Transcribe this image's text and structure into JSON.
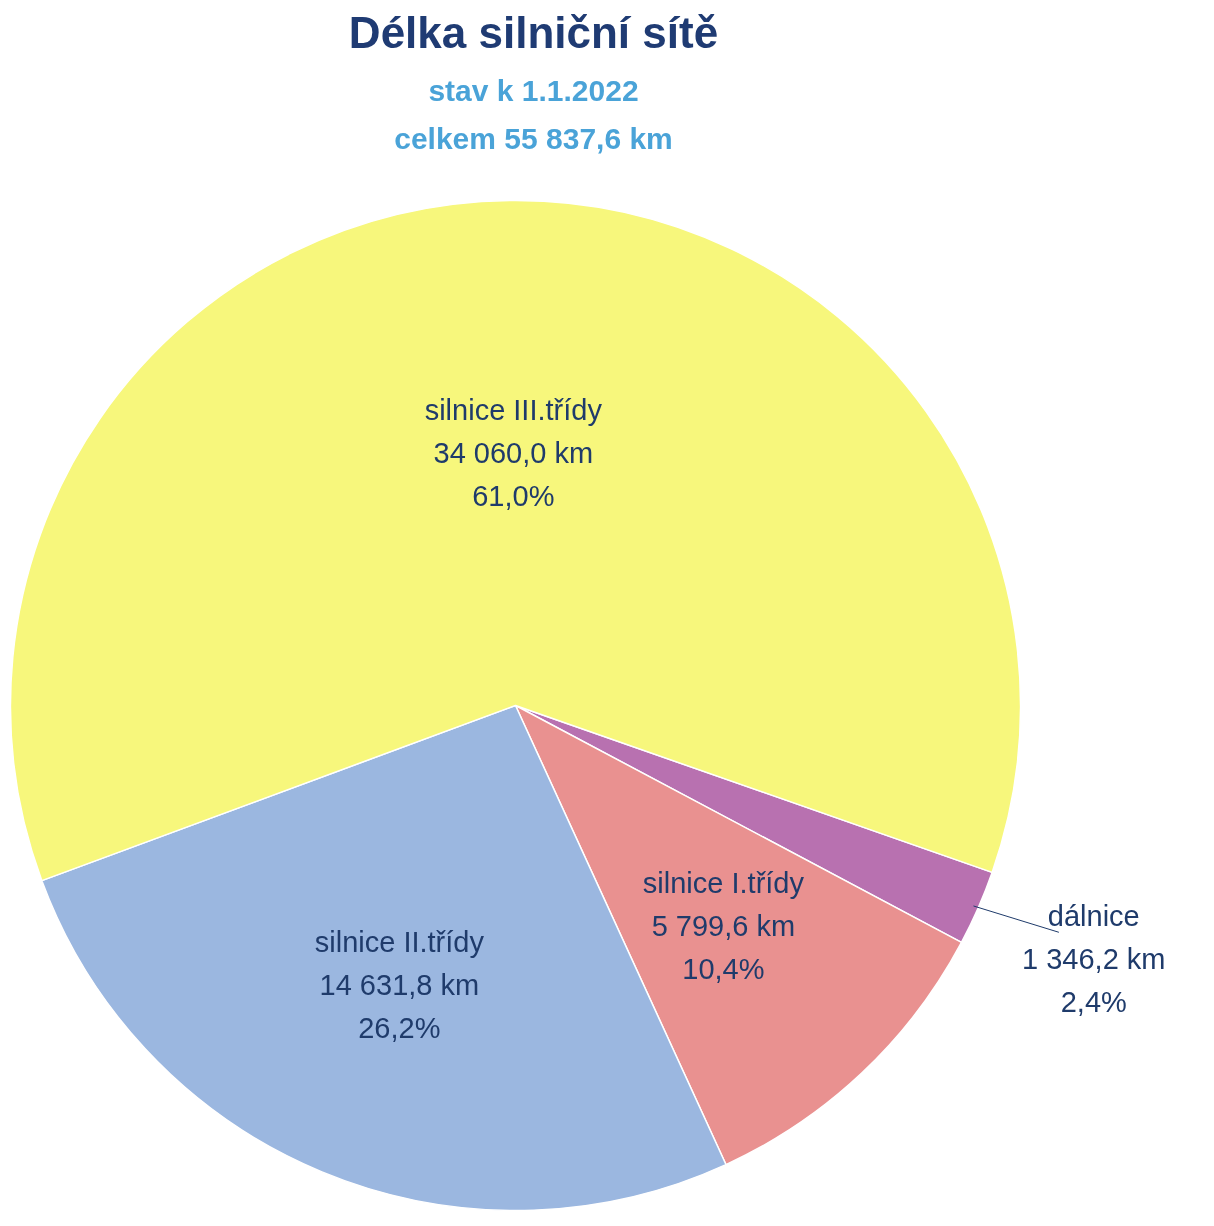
{
  "chart_data": {
    "type": "pie",
    "title": "Délka silniční sítě",
    "subtitle": "stav k 1.1.2022\ncelkem 55 837,6 km",
    "categories": [
      "dálnice",
      "silnice I.třídy",
      "silnice II.třídy",
      "silnice III.třídy"
    ],
    "values": [
      1346.2,
      5799.6,
      14631.8,
      34060.0
    ],
    "colors": [
      "#b871b0",
      "#e99190",
      "#9bb7e0",
      "#f7f77c"
    ],
    "value_labels": [
      "1 346,2 km\n2,4%",
      "5 799,6 km\n10,4%",
      "14 631,8 km\n26,2%",
      "34 060,0 km\n61,0%"
    ]
  }
}
